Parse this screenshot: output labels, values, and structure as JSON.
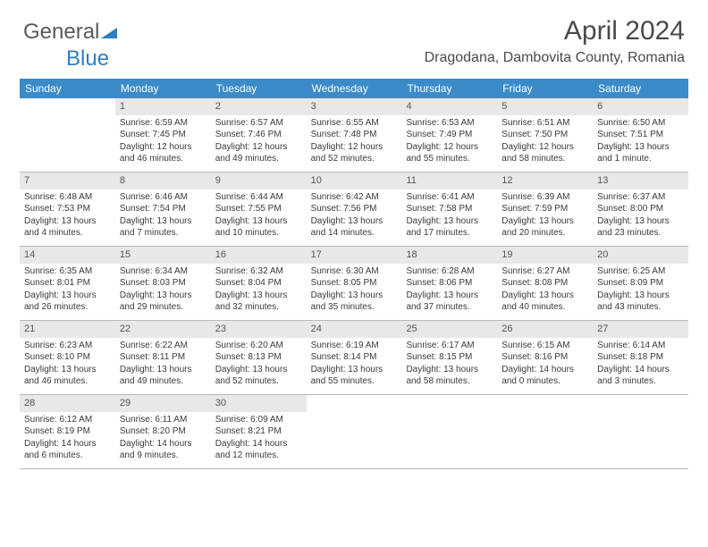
{
  "logo": {
    "part1": "General",
    "part2": "Blue"
  },
  "title": "April 2024",
  "location": "Dragodana, Dambovita County, Romania",
  "colors": {
    "header_bg": "#3b8bc8",
    "header_text": "#ffffff",
    "daynum_bg": "#e8e8e8",
    "text": "#3a3a3a",
    "border": "#b8b8b8"
  },
  "dayNames": [
    "Sunday",
    "Monday",
    "Tuesday",
    "Wednesday",
    "Thursday",
    "Friday",
    "Saturday"
  ],
  "weeks": [
    [
      {
        "n": "",
        "sr": "",
        "ss": "",
        "dl": ""
      },
      {
        "n": "1",
        "sr": "Sunrise: 6:59 AM",
        "ss": "Sunset: 7:45 PM",
        "dl": "Daylight: 12 hours and 46 minutes."
      },
      {
        "n": "2",
        "sr": "Sunrise: 6:57 AM",
        "ss": "Sunset: 7:46 PM",
        "dl": "Daylight: 12 hours and 49 minutes."
      },
      {
        "n": "3",
        "sr": "Sunrise: 6:55 AM",
        "ss": "Sunset: 7:48 PM",
        "dl": "Daylight: 12 hours and 52 minutes."
      },
      {
        "n": "4",
        "sr": "Sunrise: 6:53 AM",
        "ss": "Sunset: 7:49 PM",
        "dl": "Daylight: 12 hours and 55 minutes."
      },
      {
        "n": "5",
        "sr": "Sunrise: 6:51 AM",
        "ss": "Sunset: 7:50 PM",
        "dl": "Daylight: 12 hours and 58 minutes."
      },
      {
        "n": "6",
        "sr": "Sunrise: 6:50 AM",
        "ss": "Sunset: 7:51 PM",
        "dl": "Daylight: 13 hours and 1 minute."
      }
    ],
    [
      {
        "n": "7",
        "sr": "Sunrise: 6:48 AM",
        "ss": "Sunset: 7:53 PM",
        "dl": "Daylight: 13 hours and 4 minutes."
      },
      {
        "n": "8",
        "sr": "Sunrise: 6:46 AM",
        "ss": "Sunset: 7:54 PM",
        "dl": "Daylight: 13 hours and 7 minutes."
      },
      {
        "n": "9",
        "sr": "Sunrise: 6:44 AM",
        "ss": "Sunset: 7:55 PM",
        "dl": "Daylight: 13 hours and 10 minutes."
      },
      {
        "n": "10",
        "sr": "Sunrise: 6:42 AM",
        "ss": "Sunset: 7:56 PM",
        "dl": "Daylight: 13 hours and 14 minutes."
      },
      {
        "n": "11",
        "sr": "Sunrise: 6:41 AM",
        "ss": "Sunset: 7:58 PM",
        "dl": "Daylight: 13 hours and 17 minutes."
      },
      {
        "n": "12",
        "sr": "Sunrise: 6:39 AM",
        "ss": "Sunset: 7:59 PM",
        "dl": "Daylight: 13 hours and 20 minutes."
      },
      {
        "n": "13",
        "sr": "Sunrise: 6:37 AM",
        "ss": "Sunset: 8:00 PM",
        "dl": "Daylight: 13 hours and 23 minutes."
      }
    ],
    [
      {
        "n": "14",
        "sr": "Sunrise: 6:35 AM",
        "ss": "Sunset: 8:01 PM",
        "dl": "Daylight: 13 hours and 26 minutes."
      },
      {
        "n": "15",
        "sr": "Sunrise: 6:34 AM",
        "ss": "Sunset: 8:03 PM",
        "dl": "Daylight: 13 hours and 29 minutes."
      },
      {
        "n": "16",
        "sr": "Sunrise: 6:32 AM",
        "ss": "Sunset: 8:04 PM",
        "dl": "Daylight: 13 hours and 32 minutes."
      },
      {
        "n": "17",
        "sr": "Sunrise: 6:30 AM",
        "ss": "Sunset: 8:05 PM",
        "dl": "Daylight: 13 hours and 35 minutes."
      },
      {
        "n": "18",
        "sr": "Sunrise: 6:28 AM",
        "ss": "Sunset: 8:06 PM",
        "dl": "Daylight: 13 hours and 37 minutes."
      },
      {
        "n": "19",
        "sr": "Sunrise: 6:27 AM",
        "ss": "Sunset: 8:08 PM",
        "dl": "Daylight: 13 hours and 40 minutes."
      },
      {
        "n": "20",
        "sr": "Sunrise: 6:25 AM",
        "ss": "Sunset: 8:09 PM",
        "dl": "Daylight: 13 hours and 43 minutes."
      }
    ],
    [
      {
        "n": "21",
        "sr": "Sunrise: 6:23 AM",
        "ss": "Sunset: 8:10 PM",
        "dl": "Daylight: 13 hours and 46 minutes."
      },
      {
        "n": "22",
        "sr": "Sunrise: 6:22 AM",
        "ss": "Sunset: 8:11 PM",
        "dl": "Daylight: 13 hours and 49 minutes."
      },
      {
        "n": "23",
        "sr": "Sunrise: 6:20 AM",
        "ss": "Sunset: 8:13 PM",
        "dl": "Daylight: 13 hours and 52 minutes."
      },
      {
        "n": "24",
        "sr": "Sunrise: 6:19 AM",
        "ss": "Sunset: 8:14 PM",
        "dl": "Daylight: 13 hours and 55 minutes."
      },
      {
        "n": "25",
        "sr": "Sunrise: 6:17 AM",
        "ss": "Sunset: 8:15 PM",
        "dl": "Daylight: 13 hours and 58 minutes."
      },
      {
        "n": "26",
        "sr": "Sunrise: 6:15 AM",
        "ss": "Sunset: 8:16 PM",
        "dl": "Daylight: 14 hours and 0 minutes."
      },
      {
        "n": "27",
        "sr": "Sunrise: 6:14 AM",
        "ss": "Sunset: 8:18 PM",
        "dl": "Daylight: 14 hours and 3 minutes."
      }
    ],
    [
      {
        "n": "28",
        "sr": "Sunrise: 6:12 AM",
        "ss": "Sunset: 8:19 PM",
        "dl": "Daylight: 14 hours and 6 minutes."
      },
      {
        "n": "29",
        "sr": "Sunrise: 6:11 AM",
        "ss": "Sunset: 8:20 PM",
        "dl": "Daylight: 14 hours and 9 minutes."
      },
      {
        "n": "30",
        "sr": "Sunrise: 6:09 AM",
        "ss": "Sunset: 8:21 PM",
        "dl": "Daylight: 14 hours and 12 minutes."
      },
      {
        "n": "",
        "sr": "",
        "ss": "",
        "dl": ""
      },
      {
        "n": "",
        "sr": "",
        "ss": "",
        "dl": ""
      },
      {
        "n": "",
        "sr": "",
        "ss": "",
        "dl": ""
      },
      {
        "n": "",
        "sr": "",
        "ss": "",
        "dl": ""
      }
    ]
  ]
}
